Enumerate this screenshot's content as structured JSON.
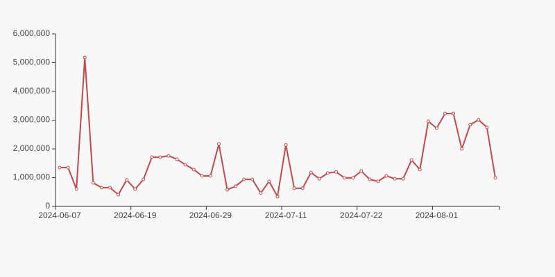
{
  "chart_data": {
    "type": "line",
    "categories": [
      "2024-06-07",
      null,
      null,
      null,
      null,
      null,
      null,
      null,
      null,
      "2024-06-19",
      null,
      null,
      null,
      null,
      null,
      null,
      null,
      null,
      "2024-06-29",
      null,
      null,
      null,
      null,
      null,
      null,
      null,
      null,
      "2024-07-11",
      null,
      null,
      null,
      null,
      null,
      null,
      null,
      null,
      "2024-07-22",
      null,
      null,
      null,
      null,
      null,
      null,
      null,
      null,
      "2024-08-01",
      null,
      null,
      null,
      null,
      null,
      null,
      null
    ],
    "series": [
      {
        "color": "#c4474a",
        "values": [
          1350000,
          1350000,
          600000,
          5180000,
          820000,
          650000,
          650000,
          410000,
          920000,
          600000,
          940000,
          1710000,
          1710000,
          1760000,
          1640000,
          1450000,
          1280000,
          1060000,
          1060000,
          2170000,
          580000,
          700000,
          940000,
          940000,
          460000,
          870000,
          340000,
          2140000,
          630000,
          630000,
          1180000,
          960000,
          1160000,
          1200000,
          990000,
          990000,
          1230000,
          940000,
          870000,
          1060000,
          960000,
          960000,
          1610000,
          1280000,
          2960000,
          2720000,
          3230000,
          3230000,
          2000000,
          2840000,
          3010000,
          2750000,
          990000
        ]
      }
    ],
    "ylim": [
      0,
      6000000
    ],
    "yticks": [
      0,
      {
        "value": 1000000,
        "label": "1,000,000"
      },
      {
        "value": 2000000,
        "label": "2,000,000"
      },
      {
        "value": 3000000,
        "label": "3,000,000"
      },
      {
        "value": 4000000,
        "label": "4,000,000"
      },
      {
        "value": 5000000,
        "label": "5,000,000"
      },
      {
        "value": 6000000,
        "label": "6,000,000"
      }
    ],
    "grid": false
  }
}
